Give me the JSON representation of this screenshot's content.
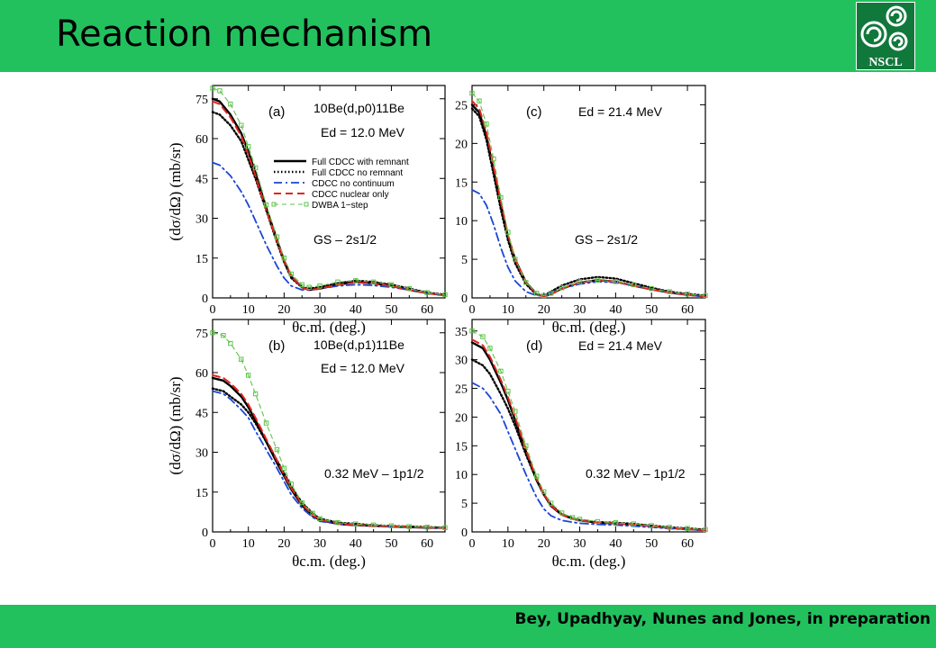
{
  "slide": {
    "title": "Reaction mechanism",
    "citation": "Bey, Upadhyay, Nunes and Jones, in preparation",
    "logo_text": "NSCL",
    "colors": {
      "bar": "#22c15e",
      "logo_bg": "#11783c"
    }
  },
  "chart_data": [
    {
      "panel": "(a)",
      "type": "line",
      "reaction": "10Be(d,p0)11Be",
      "energy": "Ed = 12.0 MeV",
      "state": "GS – 2s1/2",
      "xlabel": "θc.m. (deg.)",
      "ylabel": "(dσ/dΩ) (mb/sr)",
      "xlim": [
        0,
        65
      ],
      "ylim": [
        0,
        80
      ],
      "xticks": [
        0,
        10,
        20,
        30,
        40,
        50,
        60
      ],
      "yticks": [
        0,
        15,
        30,
        45,
        60,
        75
      ],
      "legend_position": "right",
      "series": [
        {
          "name": "Full CDCC with remnant",
          "style": "solid",
          "color": "#000000",
          "x": [
            0,
            2,
            5,
            8,
            10,
            12,
            15,
            18,
            20,
            22,
            25,
            27,
            30,
            35,
            40,
            45,
            50,
            55,
            60,
            65
          ],
          "y": [
            75,
            74,
            69,
            62,
            55,
            47,
            34,
            22,
            14,
            8,
            4,
            3,
            3.5,
            5,
            6,
            5.5,
            4.5,
            3,
            1.8,
            1
          ]
        },
        {
          "name": "Full CDCC no remnant",
          "style": "dotted",
          "color": "#000000",
          "x": [
            0,
            2,
            5,
            8,
            10,
            12,
            15,
            18,
            20,
            22,
            25,
            27,
            30,
            35,
            40,
            45,
            50,
            55,
            60,
            65
          ],
          "y": [
            70,
            69,
            65,
            59,
            52,
            45,
            33,
            21,
            13.5,
            7.5,
            4,
            3.5,
            4,
            5.5,
            6.5,
            6,
            5,
            3.5,
            2,
            1.2
          ]
        },
        {
          "name": "CDCC no continuum",
          "style": "dashdot",
          "color": "#1a46d6",
          "x": [
            0,
            2,
            5,
            8,
            10,
            12,
            15,
            18,
            20,
            22,
            25,
            27,
            30,
            35,
            40,
            45,
            50,
            55,
            60,
            65
          ],
          "y": [
            51,
            50,
            46,
            40,
            35,
            29,
            20,
            12,
            7.5,
            4.5,
            3,
            3,
            3.5,
            4.5,
            5,
            4.7,
            4,
            3,
            1.8,
            1
          ]
        },
        {
          "name": "CDCC nuclear only",
          "style": "dashed",
          "color": "#e0261d",
          "x": [
            0,
            2,
            5,
            8,
            10,
            12,
            15,
            18,
            20,
            22,
            25,
            27,
            30,
            35,
            40,
            45,
            50,
            55,
            60,
            65
          ],
          "y": [
            74,
            73,
            68,
            61,
            54,
            46,
            33,
            21.5,
            14,
            8,
            4,
            3,
            3.5,
            5,
            5.8,
            5.4,
            4.4,
            3,
            1.8,
            1
          ]
        },
        {
          "name": "DWBA 1−step",
          "style": "green-squares",
          "color": "#5ec44a",
          "x": [
            0,
            2,
            5,
            8,
            10,
            12,
            15,
            18,
            20,
            22,
            25,
            27,
            30,
            35,
            40,
            45,
            50,
            55,
            60,
            65
          ],
          "y": [
            79,
            78,
            73,
            65,
            57,
            49,
            35,
            23,
            15,
            9,
            5,
            4,
            4.5,
            6,
            6.5,
            6,
            5,
            3.5,
            2,
            1.2
          ]
        }
      ]
    },
    {
      "panel": "(c)",
      "type": "line",
      "energy": "Ed = 21.4 MeV",
      "state": "GS – 2s1/2",
      "xlabel": "θc.m. (deg.)",
      "ylabel": "",
      "xlim": [
        0,
        65
      ],
      "ylim": [
        0,
        27.5
      ],
      "xticks": [
        0,
        10,
        20,
        30,
        40,
        50,
        60
      ],
      "yticks": [
        0,
        5,
        10,
        15,
        20,
        25
      ],
      "series": [
        {
          "name": "Full CDCC with remnant",
          "style": "solid",
          "color": "#000000",
          "x": [
            0,
            2,
            4,
            6,
            8,
            10,
            12,
            15,
            18,
            20,
            22,
            25,
            30,
            35,
            40,
            45,
            50,
            55,
            60,
            65
          ],
          "y": [
            25,
            24,
            21,
            16.5,
            12,
            8,
            5,
            2,
            0.5,
            0.2,
            0.5,
            1.2,
            2,
            2.3,
            2.1,
            1.6,
            1.1,
            0.7,
            0.4,
            0.2
          ]
        },
        {
          "name": "Full CDCC no remnant",
          "style": "dotted",
          "color": "#000000",
          "x": [
            0,
            2,
            4,
            6,
            8,
            10,
            12,
            15,
            18,
            20,
            22,
            25,
            30,
            35,
            40,
            45,
            50,
            55,
            60,
            65
          ],
          "y": [
            24.5,
            23.5,
            20.5,
            16,
            11.5,
            7.5,
            4.5,
            1.8,
            0.4,
            0.3,
            0.8,
            1.6,
            2.4,
            2.7,
            2.5,
            1.9,
            1.3,
            0.8,
            0.5,
            0.3
          ]
        },
        {
          "name": "CDCC no continuum",
          "style": "dashdot",
          "color": "#1a46d6",
          "x": [
            0,
            2,
            4,
            6,
            8,
            10,
            12,
            15,
            18,
            20,
            22,
            25,
            30,
            35,
            40,
            45,
            50,
            55,
            60,
            65
          ],
          "y": [
            14,
            13.5,
            12,
            9.5,
            6.5,
            4,
            2.2,
            0.8,
            0.3,
            0.3,
            0.7,
            1.2,
            1.8,
            2.1,
            2,
            1.6,
            1.1,
            0.7,
            0.4,
            0.2
          ]
        },
        {
          "name": "CDCC nuclear only",
          "style": "dashed",
          "color": "#e0261d",
          "x": [
            0,
            2,
            4,
            6,
            8,
            10,
            12,
            15,
            18,
            20,
            22,
            25,
            30,
            35,
            40,
            45,
            50,
            55,
            60,
            65
          ],
          "y": [
            25.5,
            24.5,
            21.5,
            17,
            12.5,
            8.2,
            5,
            2,
            0.5,
            0.2,
            0.5,
            1.2,
            2,
            2.3,
            2.1,
            1.6,
            1.1,
            0.7,
            0.4,
            0.2
          ]
        },
        {
          "name": "DWBA 1−step",
          "style": "green-squares",
          "color": "#5ec44a",
          "x": [
            0,
            2,
            4,
            6,
            8,
            10,
            12,
            15,
            18,
            20,
            22,
            25,
            30,
            35,
            40,
            45,
            50,
            55,
            60,
            65
          ],
          "y": [
            26.5,
            25.5,
            22.5,
            18,
            13,
            8.5,
            5,
            2,
            0.6,
            0.3,
            0.6,
            1.3,
            2.1,
            2.3,
            2.1,
            1.7,
            1.2,
            0.8,
            0.5,
            0.3
          ]
        }
      ]
    },
    {
      "panel": "(b)",
      "type": "line",
      "reaction": "10Be(d,p1)11Be",
      "energy": "Ed = 12.0 MeV",
      "state": "0.32 MeV – 1p1/2",
      "xlabel": "θc.m. (deg.)",
      "ylabel": "(dσ/dΩ) (mb/sr)",
      "xlim": [
        0,
        65
      ],
      "ylim": [
        0,
        80
      ],
      "xticks": [
        0,
        10,
        20,
        30,
        40,
        50,
        60
      ],
      "yticks": [
        0,
        15,
        30,
        45,
        60,
        75
      ],
      "series": [
        {
          "name": "Full CDCC with remnant",
          "style": "solid",
          "color": "#000000",
          "x": [
            0,
            3,
            5,
            8,
            10,
            12,
            15,
            18,
            20,
            22,
            25,
            28,
            30,
            35,
            40,
            45,
            50,
            55,
            60,
            65
          ],
          "y": [
            58,
            57,
            55,
            51,
            47,
            42,
            34,
            26,
            21,
            16,
            10,
            6,
            4.5,
            3,
            2.5,
            2.3,
            2,
            1.8,
            1.6,
            1.5
          ]
        },
        {
          "name": "Full CDCC no remnant",
          "style": "dotted",
          "color": "#000000",
          "x": [
            0,
            3,
            5,
            8,
            10,
            12,
            15,
            18,
            20,
            22,
            25,
            28,
            30,
            35,
            40,
            45,
            50,
            55,
            60,
            65
          ],
          "y": [
            54,
            53,
            51,
            48,
            45,
            41,
            34,
            27,
            22,
            17,
            11,
            7,
            5,
            3.5,
            3,
            2.5,
            2.2,
            2,
            1.8,
            1.6
          ]
        },
        {
          "name": "CDCC no continuum",
          "style": "dashdot",
          "color": "#1a46d6",
          "x": [
            0,
            3,
            5,
            8,
            10,
            12,
            15,
            18,
            20,
            22,
            25,
            28,
            30,
            35,
            40,
            45,
            50,
            55,
            60,
            65
          ],
          "y": [
            53,
            52,
            50,
            46,
            43,
            38,
            31,
            24,
            19,
            14,
            9,
            5.5,
            4,
            3,
            2.5,
            2.2,
            2,
            1.8,
            1.6,
            1.5
          ]
        },
        {
          "name": "CDCC nuclear only",
          "style": "dashed",
          "color": "#e0261d",
          "x": [
            0,
            3,
            5,
            8,
            10,
            12,
            15,
            18,
            20,
            22,
            25,
            28,
            30,
            35,
            40,
            45,
            50,
            55,
            60,
            65
          ],
          "y": [
            59,
            58,
            56,
            52,
            48,
            43,
            35,
            27,
            21.5,
            16.5,
            10.5,
            6.3,
            4.7,
            3.2,
            2.6,
            2.3,
            2.1,
            1.9,
            1.7,
            1.5
          ]
        },
        {
          "name": "DWBA 1−step",
          "style": "green-squares",
          "color": "#5ec44a",
          "x": [
            0,
            3,
            5,
            8,
            10,
            12,
            15,
            18,
            20,
            22,
            25,
            28,
            30,
            35,
            40,
            45,
            50,
            55,
            60,
            65
          ],
          "y": [
            75,
            74,
            71,
            65,
            59,
            52,
            41,
            31,
            24,
            18,
            11,
            7,
            5,
            3.5,
            3,
            2.6,
            2.3,
            2,
            1.8,
            1.6
          ]
        }
      ]
    },
    {
      "panel": "(d)",
      "type": "line",
      "energy": "Ed = 21.4 MeV",
      "state": "0.32 MeV – 1p1/2",
      "xlabel": "θc.m. (deg.)",
      "ylabel": "",
      "xlim": [
        0,
        65
      ],
      "ylim": [
        0,
        37
      ],
      "xticks": [
        0,
        10,
        20,
        30,
        40,
        50,
        60
      ],
      "yticks": [
        0,
        5,
        10,
        15,
        20,
        25,
        30,
        35
      ],
      "series": [
        {
          "name": "Full CDCC with remnant",
          "style": "solid",
          "color": "#000000",
          "x": [
            0,
            3,
            5,
            8,
            10,
            12,
            15,
            18,
            20,
            22,
            25,
            28,
            30,
            35,
            40,
            45,
            50,
            55,
            60,
            65
          ],
          "y": [
            33,
            32,
            30,
            26,
            23,
            19.5,
            14,
            9,
            6.5,
            4.5,
            3,
            2.3,
            2,
            1.6,
            1.5,
            1.3,
            1,
            0.7,
            0.5,
            0.3
          ]
        },
        {
          "name": "Full CDCC no remnant",
          "style": "dotted",
          "color": "#000000",
          "x": [
            0,
            3,
            5,
            8,
            10,
            12,
            15,
            18,
            20,
            22,
            25,
            28,
            30,
            35,
            40,
            45,
            50,
            55,
            60,
            65
          ],
          "y": [
            30,
            29,
            27.5,
            24,
            21.5,
            18.5,
            13.5,
            9,
            6.5,
            4.7,
            3.1,
            2.4,
            2.1,
            1.7,
            1.6,
            1.4,
            1.1,
            0.8,
            0.6,
            0.4
          ]
        },
        {
          "name": "CDCC no continuum",
          "style": "dashdot",
          "color": "#1a46d6",
          "x": [
            0,
            3,
            5,
            8,
            10,
            12,
            15,
            18,
            20,
            22,
            25,
            28,
            30,
            35,
            40,
            45,
            50,
            55,
            60,
            65
          ],
          "y": [
            26,
            25,
            23.5,
            20.5,
            17.5,
            14.5,
            10,
            6,
            4,
            2.8,
            2,
            1.7,
            1.5,
            1.3,
            1.2,
            1,
            0.8,
            0.6,
            0.4,
            0.3
          ]
        },
        {
          "name": "CDCC nuclear only",
          "style": "dashed",
          "color": "#e0261d",
          "x": [
            0,
            3,
            5,
            8,
            10,
            12,
            15,
            18,
            20,
            22,
            25,
            28,
            30,
            35,
            40,
            45,
            50,
            55,
            60,
            65
          ],
          "y": [
            33.5,
            32.5,
            30.5,
            26.5,
            23.5,
            20,
            14.3,
            9.2,
            6.6,
            4.6,
            3,
            2.3,
            2,
            1.6,
            1.5,
            1.3,
            1,
            0.7,
            0.5,
            0.3
          ]
        },
        {
          "name": "DWBA 1−step",
          "style": "green-squares",
          "color": "#5ec44a",
          "x": [
            0,
            3,
            5,
            8,
            10,
            12,
            15,
            18,
            20,
            22,
            25,
            28,
            30,
            35,
            40,
            45,
            50,
            55,
            60,
            65
          ],
          "y": [
            35,
            34,
            32,
            28,
            24.5,
            21,
            15,
            9.7,
            7,
            5,
            3.3,
            2.5,
            2.2,
            1.8,
            1.6,
            1.4,
            1.1,
            0.8,
            0.6,
            0.4
          ]
        }
      ]
    }
  ]
}
